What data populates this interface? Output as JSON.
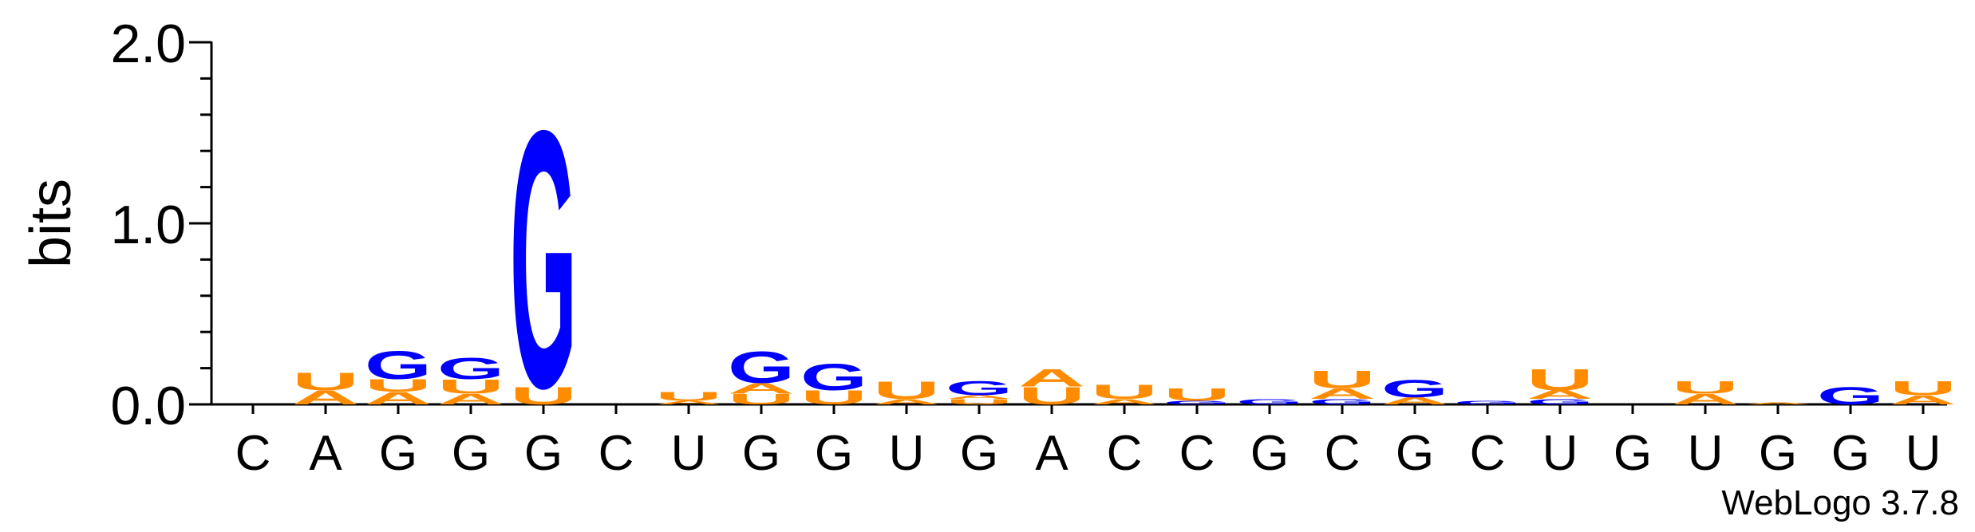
{
  "chart_data": {
    "type": "logo",
    "ylabel": "bits",
    "credit": "WebLogo 3.7.8",
    "ylim": [
      0,
      2
    ],
    "yticks": [
      {
        "value": 0,
        "label": "0.0"
      },
      {
        "value": 1,
        "label": "1.0"
      },
      {
        "value": 2,
        "label": "2.0"
      }
    ],
    "yminor_ticks": [
      0.2,
      0.4,
      0.6,
      0.8,
      1.2,
      1.4,
      1.6,
      1.8
    ],
    "categories": [
      "C",
      "A",
      "G",
      "G",
      "G",
      "C",
      "U",
      "G",
      "G",
      "U",
      "G",
      "A",
      "C",
      "C",
      "G",
      "C",
      "G",
      "C",
      "U",
      "G",
      "U",
      "G",
      "G",
      "U"
    ],
    "colors": {
      "G": "#0000ff",
      "C": "#0000ff",
      "A": "#ff8c00",
      "U": "#ff8c00"
    },
    "stacks": [
      [],
      [
        {
          "letter": "A",
          "bits": 0.08
        },
        {
          "letter": "U",
          "bits": 0.1
        }
      ],
      [
        {
          "letter": "A",
          "bits": 0.07
        },
        {
          "letter": "U",
          "bits": 0.07
        },
        {
          "letter": "G",
          "bits": 0.16
        }
      ],
      [
        {
          "letter": "A",
          "bits": 0.06
        },
        {
          "letter": "U",
          "bits": 0.08
        },
        {
          "letter": "G",
          "bits": 0.12
        }
      ],
      [
        {
          "letter": "U",
          "bits": 0.1
        },
        {
          "letter": "G",
          "bits": 1.46
        }
      ],
      [],
      [
        {
          "letter": "A",
          "bits": 0.02
        },
        {
          "letter": "U",
          "bits": 0.05
        }
      ],
      [
        {
          "letter": "U",
          "bits": 0.06
        },
        {
          "letter": "A",
          "bits": 0.06
        },
        {
          "letter": "G",
          "bits": 0.18
        }
      ],
      [
        {
          "letter": "U",
          "bits": 0.08
        },
        {
          "letter": "G",
          "bits": 0.15
        }
      ],
      [
        {
          "letter": "A",
          "bits": 0.03
        },
        {
          "letter": "U",
          "bits": 0.1
        }
      ],
      [
        {
          "letter": "U",
          "bits": 0.03
        },
        {
          "letter": "A",
          "bits": 0.02
        },
        {
          "letter": "G",
          "bits": 0.08
        }
      ],
      [
        {
          "letter": "U",
          "bits": 0.1
        },
        {
          "letter": "A",
          "bits": 0.1
        }
      ],
      [
        {
          "letter": "A",
          "bits": 0.03
        },
        {
          "letter": "U",
          "bits": 0.08
        }
      ],
      [
        {
          "letter": "G",
          "bits": 0.02
        },
        {
          "letter": "U",
          "bits": 0.07
        }
      ],
      [
        {
          "letter": "G",
          "bits": 0.03
        }
      ],
      [
        {
          "letter": "G",
          "bits": 0.03
        },
        {
          "letter": "A",
          "bits": 0.06
        },
        {
          "letter": "U",
          "bits": 0.1
        }
      ],
      [
        {
          "letter": "A",
          "bits": 0.04
        },
        {
          "letter": "G",
          "bits": 0.1
        }
      ],
      [
        {
          "letter": "G",
          "bits": 0.02
        }
      ],
      [
        {
          "letter": "G",
          "bits": 0.03
        },
        {
          "letter": "A",
          "bits": 0.05
        },
        {
          "letter": "U",
          "bits": 0.12
        }
      ],
      [],
      [
        {
          "letter": "A",
          "bits": 0.06
        },
        {
          "letter": "U",
          "bits": 0.07
        }
      ],
      [
        {
          "letter": "A",
          "bits": 0.01
        }
      ],
      [
        {
          "letter": "G",
          "bits": 0.1
        }
      ],
      [
        {
          "letter": "A",
          "bits": 0.05
        },
        {
          "letter": "U",
          "bits": 0.08
        }
      ]
    ]
  }
}
